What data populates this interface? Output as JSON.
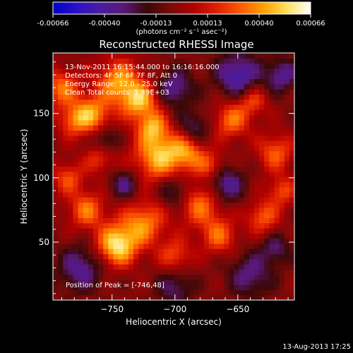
{
  "colorbar": {
    "ticks": [
      "-0.00066",
      "-0.00040",
      "-0.00013",
      "0.00013",
      "0.00040",
      "0.00066"
    ],
    "units": "(photons cm⁻² s⁻¹ asec⁻²)"
  },
  "title": "Reconstructed RHESSI Image",
  "info": [
    "13-Nov-2011 16:15:44.000 to 16:16:16.000",
    "Detectors: 4F 5F 6F 7F 8F, Att 0",
    "Energy Range: 12.0 - 25.0 keV",
    "Clean      Total counts: 1.49E+03"
  ],
  "peak_label": "Position of Peak = [-746,48]",
  "footer_date": "13-Aug-2013 17:25",
  "chart_data": {
    "type": "heatmap",
    "xlabel": "Heliocentric X (arcsec)",
    "ylabel": "Heliocentric Y (arcsec)",
    "xlim": [
      -797,
      -605
    ],
    "ylim": [
      5,
      197
    ],
    "x_ticks": [
      -750,
      -700,
      -650
    ],
    "y_ticks": [
      50,
      100,
      150
    ],
    "x_tick_labels": [
      "−750",
      "−700",
      "−650"
    ],
    "y_tick_labels": [
      "50",
      "100",
      "150"
    ],
    "colormap": [
      "#0000cc",
      "#2a10c8",
      "#4a1ca0",
      "#5a1878",
      "#3a0808",
      "#7a0a0a",
      "#b00000",
      "#e02000",
      "#ff5a00",
      "#ffa000",
      "#ffe060",
      "#ffffff"
    ],
    "value_range": [
      -0.00066,
      0.00066
    ],
    "grid": false,
    "peak": [
      -746,
      48
    ],
    "sources": [
      [
        -790,
        170,
        10,
        0.45
      ],
      [
        -780,
        145,
        9,
        0.4
      ],
      [
        -765,
        150,
        10,
        0.5
      ],
      [
        -745,
        175,
        12,
        0.55
      ],
      [
        -728,
        160,
        10,
        0.6
      ],
      [
        -718,
        140,
        8,
        0.45
      ],
      [
        -712,
        118,
        14,
        0.65
      ],
      [
        -690,
        120,
        9,
        0.4
      ],
      [
        -672,
        110,
        8,
        0.35
      ],
      [
        -655,
        145,
        10,
        0.45
      ],
      [
        -638,
        160,
        8,
        0.35
      ],
      [
        -620,
        120,
        10,
        0.4
      ],
      [
        -615,
        90,
        8,
        0.35
      ],
      [
        -630,
        70,
        9,
        0.4
      ],
      [
        -680,
        80,
        12,
        0.45
      ],
      [
        -665,
        55,
        10,
        0.4
      ],
      [
        -700,
        40,
        9,
        0.35
      ],
      [
        -725,
        65,
        12,
        0.5
      ],
      [
        -746,
        48,
        11,
        0.75
      ],
      [
        -770,
        75,
        10,
        0.45
      ],
      [
        -785,
        100,
        9,
        0.35
      ],
      [
        -760,
        115,
        8,
        0.3
      ],
      [
        -740,
        95,
        8,
        -0.35
      ],
      [
        -700,
        170,
        10,
        -0.4
      ],
      [
        -650,
        180,
        12,
        -0.5
      ],
      [
        -615,
        180,
        9,
        -0.4
      ],
      [
        -660,
        95,
        10,
        -0.45
      ],
      [
        -700,
        90,
        9,
        -0.35
      ],
      [
        -775,
        30,
        12,
        -0.4
      ],
      [
        -700,
        15,
        10,
        -0.3
      ],
      [
        -640,
        25,
        12,
        -0.35
      ],
      [
        -620,
        45,
        8,
        -0.3
      ],
      [
        -755,
        130,
        7,
        -0.3
      ],
      [
        -685,
        140,
        9,
        -0.3
      ]
    ]
  }
}
